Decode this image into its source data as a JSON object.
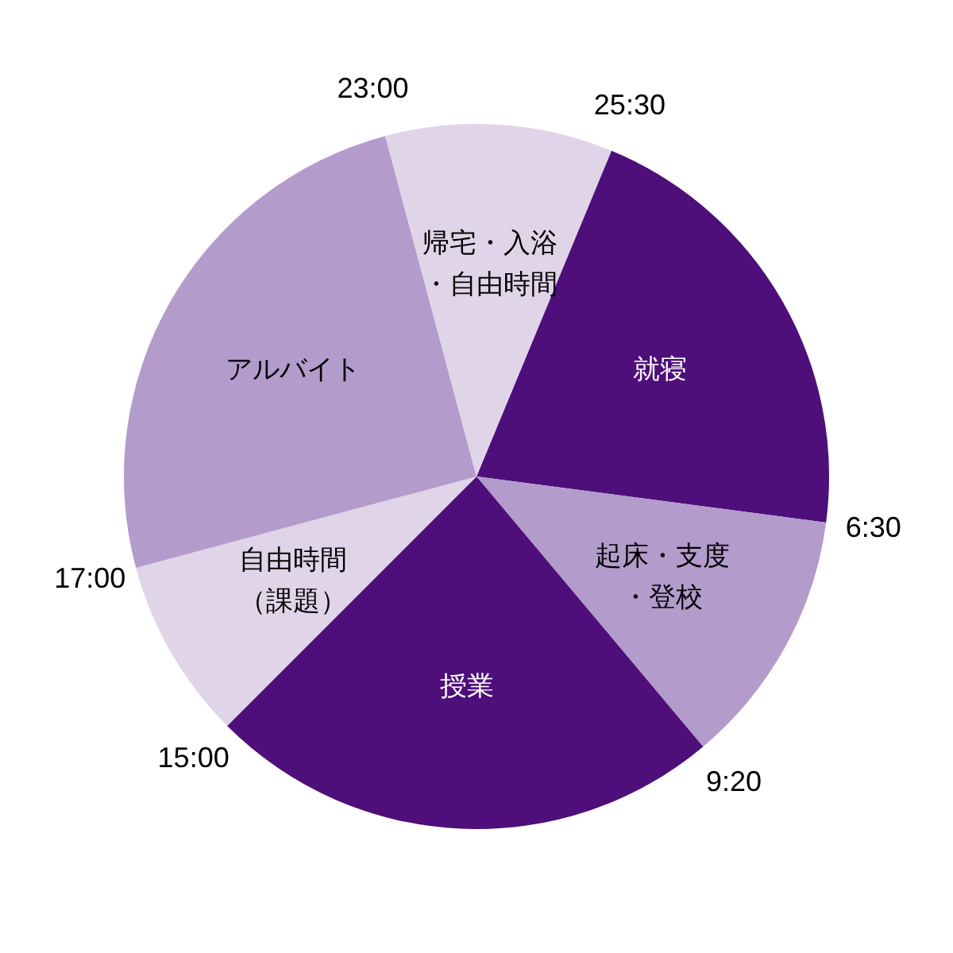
{
  "chart_data": {
    "type": "pie",
    "categories": [
      "就寝",
      "起床・支度・登校",
      "授業",
      "自由時間（課題）",
      "アルバイト",
      "帰宅・入浴・自由時間"
    ],
    "values": [
      20.833,
      11.806,
      23.611,
      8.333,
      25,
      10.417
    ],
    "colors": [
      "#4e0f7a",
      "#b39bcb",
      "#4e0f7a",
      "#e0d4e8",
      "#b39bcb",
      "#e0d4e8"
    ],
    "annotations": [
      "25:30",
      "6:30",
      "9:20",
      "15:00",
      "17:00",
      "23:00"
    ],
    "legend": false
  }
}
